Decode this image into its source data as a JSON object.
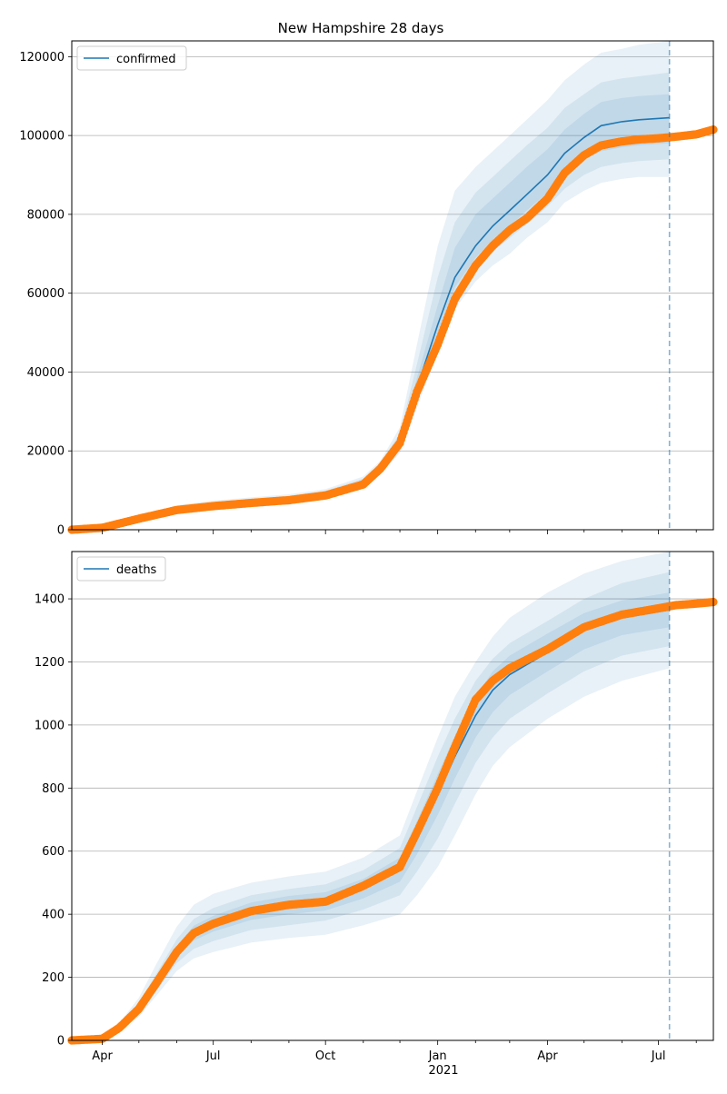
{
  "title": "New Hampshire 28 days",
  "x_tick_labels": [
    "Apr",
    "Jul",
    "Oct",
    "Jan",
    "Apr",
    "Jul"
  ],
  "x_year_label": "2021",
  "colors": {
    "model_line": "#1f77b4",
    "observed_points": "#ff7f0e",
    "band": "#1f77b4",
    "grid": "#b0b0b0",
    "forecast_marker": "#1f77b4"
  },
  "chart_data": [
    {
      "type": "line",
      "series": [
        {
          "name": "confirmed"
        }
      ],
      "x_range": [
        "2020-03-07",
        "2021-08-15"
      ],
      "ylim": [
        0,
        124000
      ],
      "y_ticks": [
        0,
        20000,
        40000,
        60000,
        80000,
        100000,
        120000
      ],
      "grid": "horizontal",
      "legend": "top-left",
      "forecast_date": "2021-07-10",
      "model": [
        [
          "2020-03-07",
          0
        ],
        [
          "2020-04-01",
          700
        ],
        [
          "2020-05-01",
          3000
        ],
        [
          "2020-06-01",
          5300
        ],
        [
          "2020-07-01",
          6300
        ],
        [
          "2020-08-01",
          7000
        ],
        [
          "2020-09-01",
          7700
        ],
        [
          "2020-10-01",
          9000
        ],
        [
          "2020-11-01",
          12000
        ],
        [
          "2020-11-15",
          15500
        ],
        [
          "2020-12-01",
          22000
        ],
        [
          "2020-12-15",
          36000
        ],
        [
          "2021-01-01",
          52000
        ],
        [
          "2021-01-15",
          64000
        ],
        [
          "2021-02-01",
          72000
        ],
        [
          "2021-02-15",
          77000
        ],
        [
          "2021-03-01",
          81000
        ],
        [
          "2021-03-15",
          85000
        ],
        [
          "2021-04-01",
          90000
        ],
        [
          "2021-04-15",
          95500
        ],
        [
          "2021-05-01",
          99500
        ],
        [
          "2021-05-15",
          102500
        ],
        [
          "2021-06-01",
          103500
        ],
        [
          "2021-06-15",
          104000
        ],
        [
          "2021-07-10",
          104500
        ]
      ],
      "bands": [
        {
          "lower": [
            0,
            600,
            2700,
            4800,
            5600,
            6200,
            6900,
            8000,
            10800,
            14000,
            19500,
            31000,
            45000,
            56000,
            63000,
            67000,
            70000,
            74000,
            78000,
            83000,
            86000,
            88000,
            89000,
            89500,
            89500
          ],
          "upper": [
            0,
            900,
            3500,
            6200,
            7400,
            8200,
            9000,
            10300,
            13500,
            17500,
            26000,
            47000,
            72000,
            86000,
            92000,
            96000,
            100000,
            104000,
            109000,
            114000,
            118000,
            121000,
            122000,
            123000,
            124000
          ]
        },
        {
          "lower": [
            0,
            650,
            2800,
            5000,
            5800,
            6500,
            7200,
            8400,
            11200,
            14500,
            20500,
            33000,
            48000,
            59000,
            66500,
            70500,
            74000,
            77500,
            82000,
            86500,
            90000,
            92000,
            93000,
            93500,
            94000
          ],
          "upper": [
            0,
            850,
            3300,
            5900,
            7000,
            7800,
            8600,
            9900,
            13000,
            17000,
            24500,
            42000,
            64000,
            78000,
            85500,
            89500,
            93500,
            97500,
            102000,
            107000,
            110500,
            113500,
            114500,
            115000,
            116000
          ]
        },
        {
          "lower": [
            0,
            680,
            2900,
            5150,
            6050,
            6750,
            7450,
            8700,
            11600,
            15000,
            21300,
            34500,
            50000,
            61500,
            69000,
            73500,
            77000,
            81000,
            85500,
            90000,
            94000,
            96000,
            97000,
            97500,
            98000
          ],
          "upper": [
            0,
            780,
            3150,
            5600,
            6700,
            7400,
            8150,
            9450,
            12600,
            16400,
            23200,
            38500,
            57000,
            71500,
            80000,
            84000,
            88000,
            92000,
            96500,
            101500,
            105500,
            108500,
            109500,
            110000,
            110500
          ]
        }
      ],
      "observed": [
        [
          "2020-03-07",
          0
        ],
        [
          "2020-04-01",
          500
        ],
        [
          "2020-05-01",
          2800
        ],
        [
          "2020-06-01",
          5000
        ],
        [
          "2020-07-01",
          6000
        ],
        [
          "2020-08-01",
          6800
        ],
        [
          "2020-09-01",
          7500
        ],
        [
          "2020-10-01",
          8700
        ],
        [
          "2020-11-01",
          11500
        ],
        [
          "2020-11-15",
          15500
        ],
        [
          "2020-12-01",
          22000
        ],
        [
          "2020-12-15",
          35000
        ],
        [
          "2021-01-01",
          47000
        ],
        [
          "2021-01-15",
          58500
        ],
        [
          "2021-02-01",
          67000
        ],
        [
          "2021-02-15",
          72000
        ],
        [
          "2021-03-01",
          76000
        ],
        [
          "2021-03-15",
          79000
        ],
        [
          "2021-04-01",
          84000
        ],
        [
          "2021-04-15",
          90500
        ],
        [
          "2021-05-01",
          95000
        ],
        [
          "2021-05-15",
          97500
        ],
        [
          "2021-06-01",
          98500
        ],
        [
          "2021-06-15",
          99000
        ],
        [
          "2021-07-01",
          99300
        ],
        [
          "2021-07-15",
          99700
        ],
        [
          "2021-08-01",
          100300
        ],
        [
          "2021-08-15",
          101500
        ]
      ]
    },
    {
      "type": "line",
      "series": [
        {
          "name": "deaths"
        }
      ],
      "x_range": [
        "2020-03-07",
        "2021-08-15"
      ],
      "ylim": [
        0,
        1550
      ],
      "y_ticks": [
        0,
        200,
        400,
        600,
        800,
        1000,
        1200,
        1400
      ],
      "grid": "horizontal",
      "legend": "top-left",
      "forecast_date": "2021-07-10",
      "model": [
        [
          "2020-03-07",
          0
        ],
        [
          "2020-04-01",
          5
        ],
        [
          "2020-04-15",
          40
        ],
        [
          "2020-05-01",
          100
        ],
        [
          "2020-05-15",
          180
        ],
        [
          "2020-06-01",
          280
        ],
        [
          "2020-06-15",
          340
        ],
        [
          "2020-07-01",
          370
        ],
        [
          "2020-08-01",
          410
        ],
        [
          "2020-09-01",
          430
        ],
        [
          "2020-10-01",
          440
        ],
        [
          "2020-11-01",
          480
        ],
        [
          "2020-12-01",
          540
        ],
        [
          "2020-12-15",
          640
        ],
        [
          "2021-01-01",
          780
        ],
        [
          "2021-01-15",
          900
        ],
        [
          "2021-02-01",
          1030
        ],
        [
          "2021-02-15",
          1110
        ],
        [
          "2021-03-01",
          1160
        ],
        [
          "2021-04-01",
          1230
        ],
        [
          "2021-05-01",
          1300
        ],
        [
          "2021-06-01",
          1340
        ],
        [
          "2021-07-10",
          1365
        ]
      ],
      "bands": [
        {
          "lower": [
            0,
            2,
            30,
            75,
            140,
            220,
            260,
            280,
            310,
            325,
            335,
            365,
            400,
            460,
            550,
            650,
            780,
            870,
            930,
            1020,
            1090,
            1140,
            1180
          ],
          "upper": [
            0,
            8,
            55,
            135,
            240,
            360,
            430,
            465,
            500,
            520,
            535,
            580,
            650,
            790,
            960,
            1090,
            1200,
            1280,
            1340,
            1420,
            1480,
            1520,
            1550
          ]
        },
        {
          "lower": [
            0,
            3,
            34,
            86,
            156,
            245,
            290,
            315,
            350,
            365,
            380,
            415,
            460,
            535,
            640,
            750,
            880,
            960,
            1020,
            1100,
            1170,
            1220,
            1250
          ],
          "upper": [
            0,
            7,
            48,
            118,
            210,
            320,
            385,
            420,
            460,
            480,
            495,
            540,
            610,
            740,
            900,
            1020,
            1140,
            1210,
            1260,
            1330,
            1400,
            1450,
            1485
          ]
        },
        {
          "lower": [
            0,
            4,
            37,
            93,
            168,
            262,
            316,
            345,
            382,
            400,
            412,
            450,
            503,
            590,
            715,
            830,
            960,
            1040,
            1095,
            1170,
            1240,
            1285,
            1310
          ],
          "upper": [
            0,
            6,
            44,
            108,
            194,
            298,
            364,
            395,
            437,
            458,
            470,
            512,
            580,
            695,
            845,
            965,
            1090,
            1170,
            1220,
            1290,
            1355,
            1395,
            1420
          ]
        }
      ],
      "observed": [
        [
          "2020-03-07",
          0
        ],
        [
          "2020-04-01",
          5
        ],
        [
          "2020-04-15",
          40
        ],
        [
          "2020-05-01",
          100
        ],
        [
          "2020-05-15",
          180
        ],
        [
          "2020-06-01",
          280
        ],
        [
          "2020-06-15",
          340
        ],
        [
          "2020-07-01",
          370
        ],
        [
          "2020-08-01",
          410
        ],
        [
          "2020-09-01",
          430
        ],
        [
          "2020-10-01",
          440
        ],
        [
          "2020-11-01",
          490
        ],
        [
          "2020-12-01",
          550
        ],
        [
          "2020-12-15",
          660
        ],
        [
          "2021-01-01",
          800
        ],
        [
          "2021-01-15",
          930
        ],
        [
          "2021-02-01",
          1080
        ],
        [
          "2021-02-15",
          1140
        ],
        [
          "2021-03-01",
          1180
        ],
        [
          "2021-04-01",
          1240
        ],
        [
          "2021-05-01",
          1310
        ],
        [
          "2021-06-01",
          1350
        ],
        [
          "2021-07-01",
          1370
        ],
        [
          "2021-07-15",
          1380
        ],
        [
          "2021-08-01",
          1385
        ],
        [
          "2021-08-15",
          1390
        ]
      ]
    }
  ]
}
